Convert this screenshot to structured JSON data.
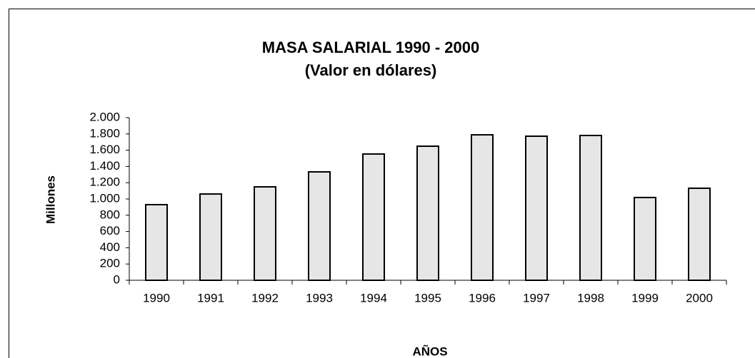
{
  "chart_data": {
    "type": "bar",
    "title": "MASA SALARIAL 1990 - 2000",
    "subtitle": "(Valor en dólares)",
    "y_label": "Millones",
    "x_label": "AÑOS",
    "categories": [
      "1990",
      "1991",
      "1992",
      "1993",
      "1994",
      "1995",
      "1996",
      "1997",
      "1998",
      "1999",
      "2000"
    ],
    "values": [
      930,
      1061,
      1149,
      1333,
      1553,
      1649,
      1789,
      1772,
      1781,
      1018,
      1132
    ],
    "color": "#e6e6e6",
    "ylim": [
      0,
      2000
    ],
    "yticks": [
      0,
      200,
      400,
      600,
      800,
      {
        "value": 1000,
        "label": "1.000"
      },
      {
        "value": 1200,
        "label": "1.200"
      },
      {
        "value": 1400,
        "label": "1.400"
      },
      {
        "value": 1600,
        "label": "1.600"
      },
      {
        "value": 1800,
        "label": "1.800"
      },
      {
        "value": 2000,
        "label": "2.000"
      }
    ],
    "grid": false
  }
}
